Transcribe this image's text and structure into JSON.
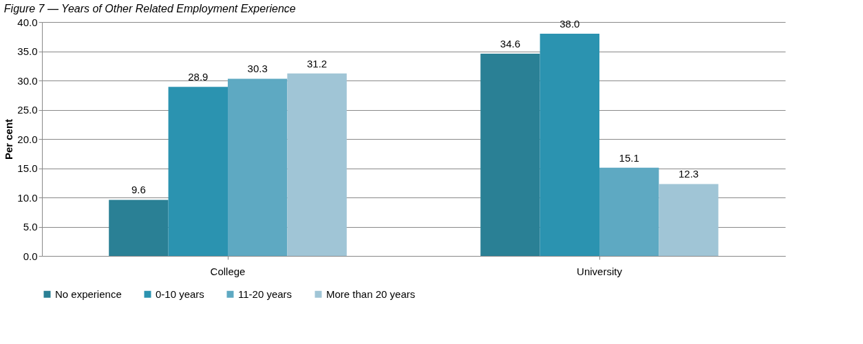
{
  "chart_data": {
    "type": "bar",
    "title": "Figure 7 — Years of Other Related Employment Experience",
    "ylabel": "Per cent",
    "categories": [
      "College",
      "University"
    ],
    "series": [
      {
        "name": "No experience",
        "color": "#2a8095",
        "values": [
          9.6,
          34.6
        ],
        "value_labels": [
          "9.6",
          "34.6"
        ]
      },
      {
        "name": "0-10 years",
        "color": "#2b93b0",
        "values": [
          28.9,
          38.0
        ],
        "value_labels": [
          "28.9",
          "38.0"
        ]
      },
      {
        "name": "11-20 years",
        "color": "#5ea9c2",
        "values": [
          30.3,
          15.1
        ],
        "value_labels": [
          "30.3",
          "15.1"
        ]
      },
      {
        "name": "More than 20 years",
        "color": "#a0c5d6",
        "values": [
          31.2,
          12.3
        ],
        "value_labels": [
          "31.2",
          "12.3"
        ]
      }
    ],
    "ylim": [
      0,
      40
    ],
    "yticks": [
      {
        "value": 0,
        "label": "0.0"
      },
      {
        "value": 5,
        "label": "5.0"
      },
      {
        "value": 10,
        "label": "10.0"
      },
      {
        "value": 15,
        "label": "15.0"
      },
      {
        "value": 20,
        "label": "20.0"
      },
      {
        "value": 25,
        "label": "25.0"
      },
      {
        "value": 30,
        "label": "30.0"
      },
      {
        "value": 35,
        "label": "35.0"
      },
      {
        "value": 40,
        "label": "40.0"
      }
    ],
    "grid": "y",
    "legend": "bottom"
  }
}
